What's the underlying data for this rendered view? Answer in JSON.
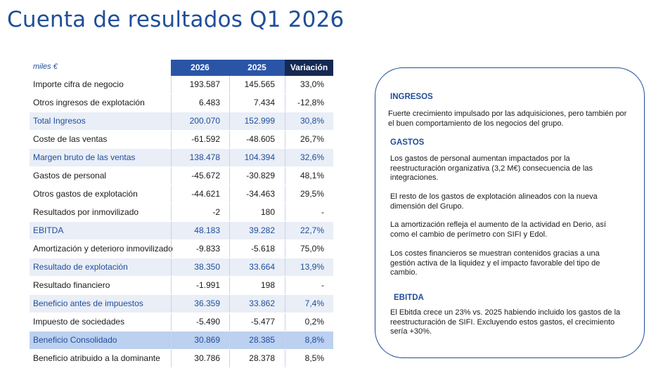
{
  "title": "Cuenta de resultados Q1 2026",
  "table": {
    "units": "miles €",
    "headers": [
      "2026",
      "2025",
      "Variación"
    ],
    "rows": [
      {
        "label": "Importe cifra de negocio",
        "v2026": "193.587",
        "v2025": "145.565",
        "var": "33,0%",
        "style": "normal"
      },
      {
        "label": "Otros ingresos de explotación",
        "v2026": "6.483",
        "v2025": "7.434",
        "var": "-12,8%",
        "style": "normal"
      },
      {
        "label": "Total Ingresos",
        "v2026": "200.070",
        "v2025": "152.999",
        "var": "30,8%",
        "style": "sub"
      },
      {
        "label": "Coste de las ventas",
        "v2026": "-61.592",
        "v2025": "-48.605",
        "var": "26,7%",
        "style": "normal"
      },
      {
        "label": "Margen bruto de las ventas",
        "v2026": "138.478",
        "v2025": "104.394",
        "var": "32,6%",
        "style": "sub"
      },
      {
        "label": "Gastos  de personal",
        "v2026": "-45.672",
        "v2025": "-30.829",
        "var": "48,1%",
        "style": "normal"
      },
      {
        "label": "Otros gastos de explotación",
        "v2026": "-44.621",
        "v2025": "-34.463",
        "var": "29,5%",
        "style": "normal"
      },
      {
        "label": "Resultados por inmovilizado",
        "v2026": "-2",
        "v2025": "180",
        "var": "-",
        "style": "normal"
      },
      {
        "label": "EBITDA",
        "v2026": "48.183",
        "v2025": "39.282",
        "var": "22,7%",
        "style": "sub"
      },
      {
        "label": "Amortización y deterioro inmovilizado",
        "v2026": "-9.833",
        "v2025": "-5.618",
        "var": "75,0%",
        "style": "normal"
      },
      {
        "label": "Resultado de explotación",
        "v2026": "38.350",
        "v2025": "33.664",
        "var": "13,9%",
        "style": "sub"
      },
      {
        "label": "Resultado financiero",
        "v2026": "-1.991",
        "v2025": "198",
        "var": "-",
        "style": "normal"
      },
      {
        "label": "Beneficio antes de impuestos",
        "v2026": "36.359",
        "v2025": "33.862",
        "var": "7,4%",
        "style": "sub"
      },
      {
        "label": "Impuesto de sociedades",
        "v2026": "-5.490",
        "v2025": "-5.477",
        "var": "0,2%",
        "style": "normal"
      },
      {
        "label": "Beneficio Consolidado",
        "v2026": "30.869",
        "v2025": "28.385",
        "var": "8,8%",
        "style": "hl"
      },
      {
        "label": "Beneficio atribuido a la dominante",
        "v2026": "30.786",
        "v2025": "28.378",
        "var": "8,5%",
        "style": "normal"
      }
    ]
  },
  "commentary": {
    "ingresos_title": "INGRESOS",
    "ingresos_text": "Fuerte crecimiento impulsado por las adquisiciones, pero también por el buen comportamiento de los negocios del grupo.",
    "gastos_title": "GASTOS",
    "gastos_p1": "Los gastos de personal aumentan impactados por la reestructuración organizativa (3,2 M€) consecuencia de las integraciones.",
    "gastos_p2": "El resto de los gastos de explotación alineados con la nueva dimensión del Grupo.",
    "gastos_p3": "La amortización refleja el aumento de la actividad en Derio, así como el cambio de perímetro con SIFI y Edol.",
    "gastos_p4": "Los costes financieros se muestran contenidos gracias a una gestión activa de la liquidez y el impacto favorable del tipo de cambio.",
    "ebitda_title": "EBITDA",
    "ebitda_text": "El Ebitda crece un 23% vs. 2025 habiendo incluido los gastos de la reestructuración de SIFI. Excluyendo estos gastos, el crecimiento sería +30%."
  },
  "colors": {
    "brand_blue": "#1f4e9a",
    "header_blue": "#2a55a7",
    "header_dark": "#152a52",
    "subtotal_bg": "#e9eef7",
    "highlight_bg": "#bcd0f0"
  }
}
